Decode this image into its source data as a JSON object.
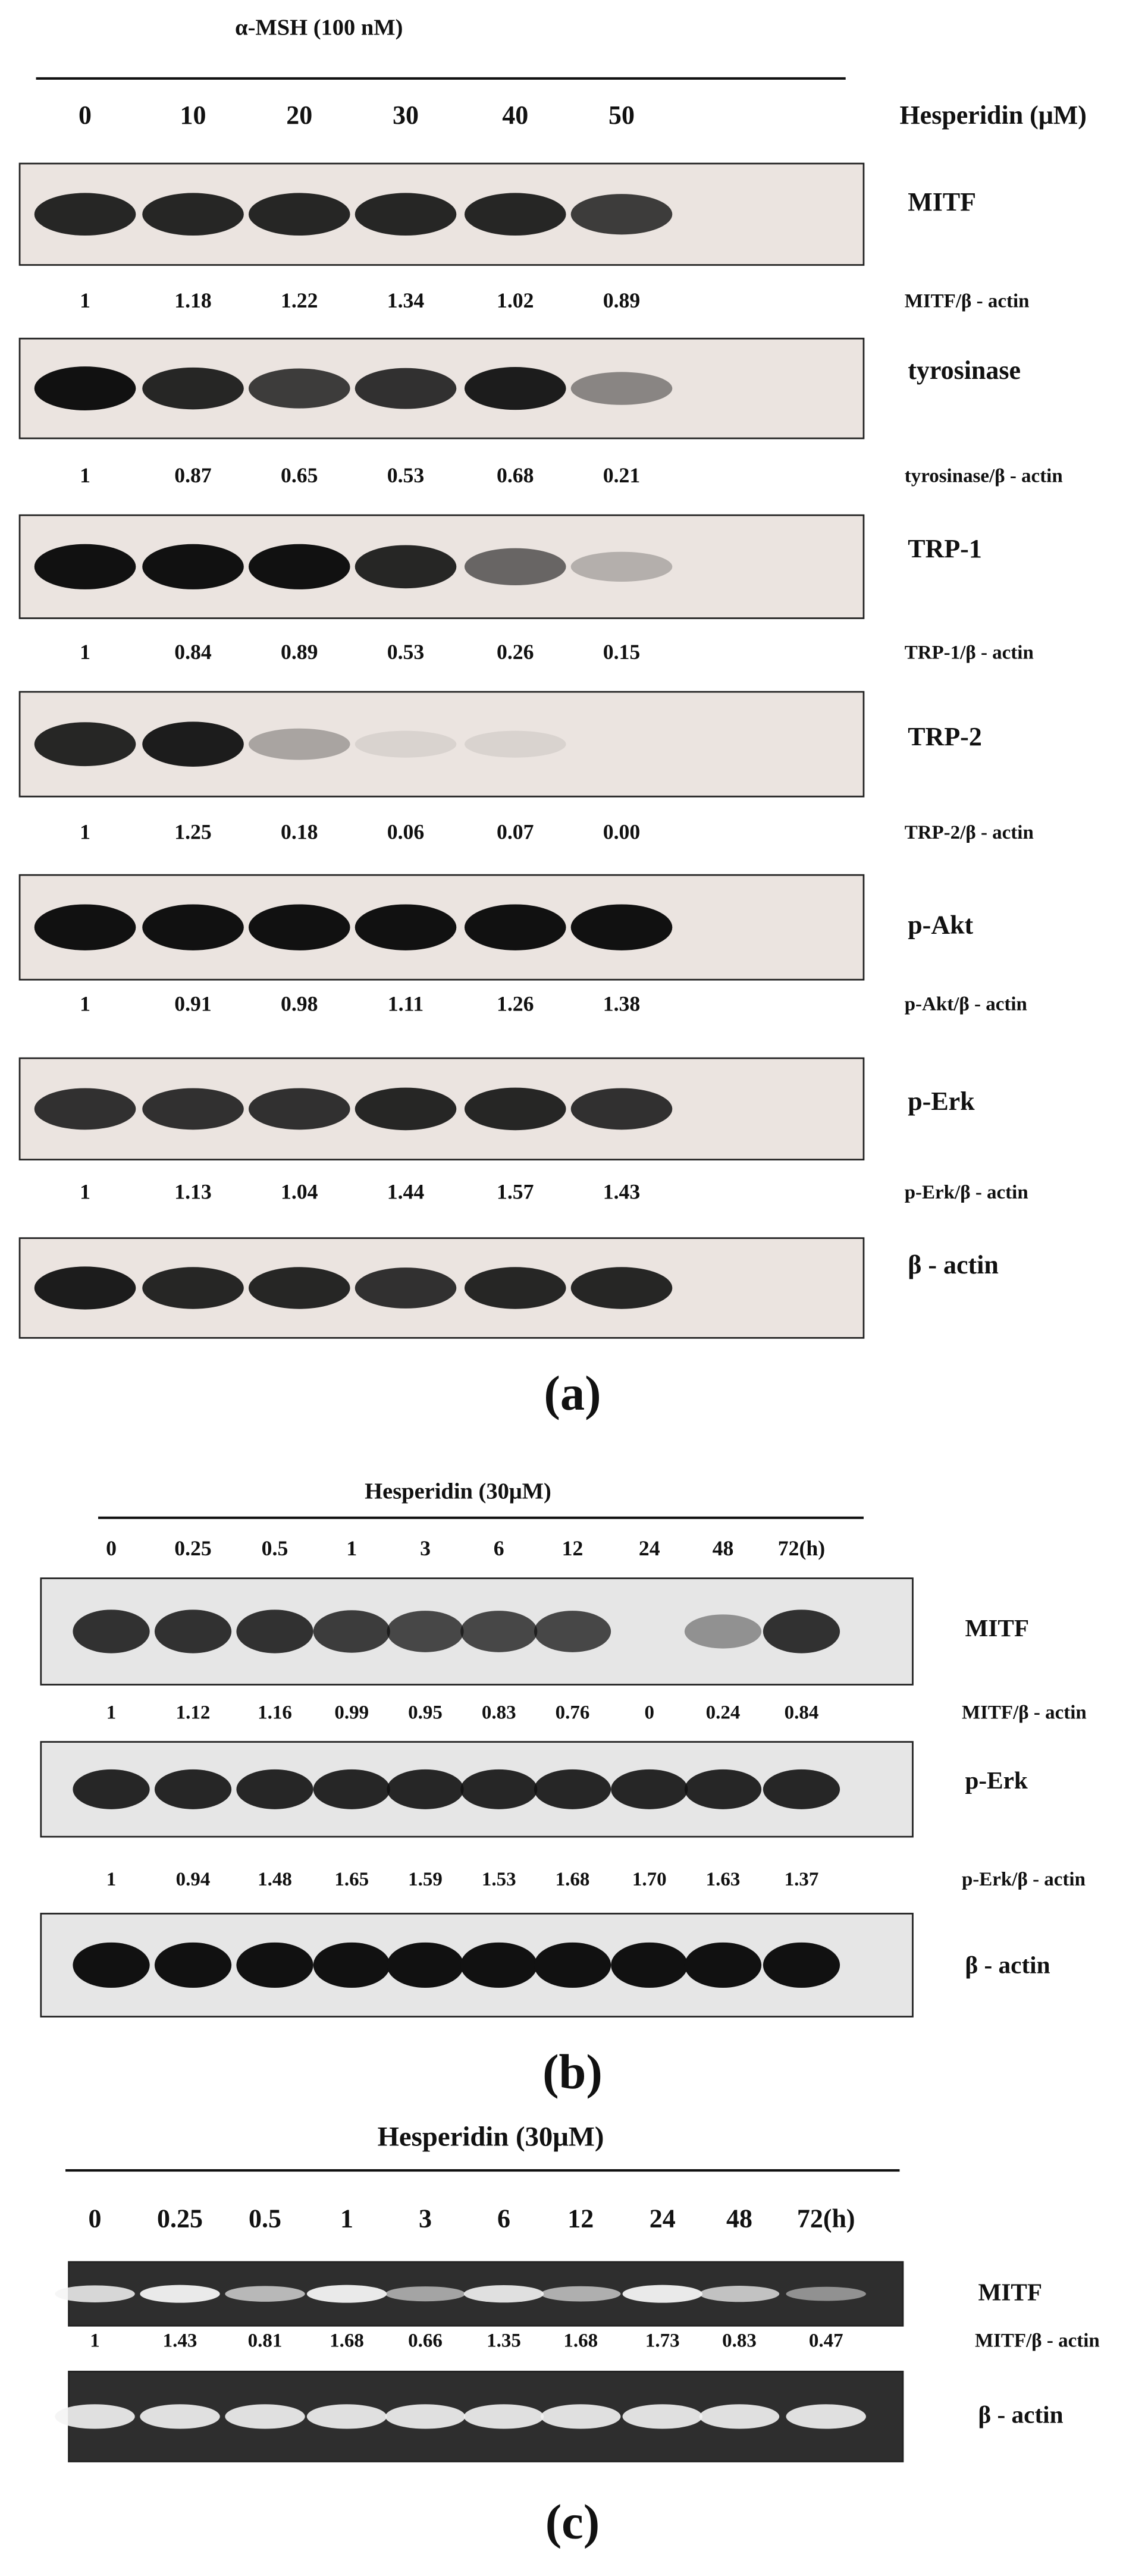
{
  "panels": [
    {
      "caption": "(a)",
      "header": "α-MSH (100 nM)",
      "lanes_title": "Hesperidin (μM)",
      "lanes": [
        "0",
        "10",
        "20",
        "30",
        "40",
        "50"
      ],
      "blots": [
        {
          "label": "MITF",
          "ratio_label": "MITF/β - actin",
          "ratios": [
            "1",
            "1.18",
            "1.22",
            "1.34",
            "1.02",
            "0.89"
          ]
        },
        {
          "label": "tyrosinase",
          "ratio_label": "tyrosinase/β - actin",
          "ratios": [
            "1",
            "0.87",
            "0.65",
            "0.53",
            "0.68",
            "0.21"
          ]
        },
        {
          "label": "TRP-1",
          "ratio_label": "TRP-1/β - actin",
          "ratios": [
            "1",
            "0.84",
            "0.89",
            "0.53",
            "0.26",
            "0.15"
          ]
        },
        {
          "label": "TRP-2",
          "ratio_label": "TRP-2/β - actin",
          "ratios": [
            "1",
            "1.25",
            "0.18",
            "0.06",
            "0.07",
            "0.00"
          ]
        },
        {
          "label": "p-Akt",
          "ratio_label": "p-Akt/β - actin",
          "ratios": [
            "1",
            "0.91",
            "0.98",
            "1.11",
            "1.26",
            "1.38"
          ]
        },
        {
          "label": "p-Erk",
          "ratio_label": "p-Erk/β - actin",
          "ratios": [
            "1",
            "1.13",
            "1.04",
            "1.44",
            "1.57",
            "1.43"
          ]
        },
        {
          "label": "β - actin"
        }
      ]
    },
    {
      "caption": "(b)",
      "header": "Hesperidin (30μM)",
      "lanes": [
        "0",
        "0.25",
        "0.5",
        "1",
        "3",
        "6",
        "12",
        "24",
        "48",
        "72(h)"
      ],
      "blots": [
        {
          "label": "MITF",
          "ratio_label": "MITF/β - actin",
          "ratios": [
            "1",
            "1.12",
            "1.16",
            "0.99",
            "0.95",
            "0.83",
            "0.76",
            "0",
            "0.24",
            "0.84"
          ]
        },
        {
          "label": "p-Erk",
          "ratio_label": "p-Erk/β - actin",
          "ratios": [
            "1",
            "0.94",
            "1.48",
            "1.65",
            "1.59",
            "1.53",
            "1.68",
            "1.70",
            "1.63",
            "1.37"
          ]
        },
        {
          "label": "β - actin"
        }
      ]
    },
    {
      "caption": "(c)",
      "header": "Hesperidin (30μM)",
      "lanes": [
        "0",
        "0.25",
        "0.5",
        "1",
        "3",
        "6",
        "12",
        "24",
        "48",
        "72(h)"
      ],
      "blots": [
        {
          "label": "MITF",
          "ratio_label": "MITF/β - actin",
          "ratios": [
            "1",
            "1.43",
            "0.81",
            "1.68",
            "0.66",
            "1.35",
            "1.68",
            "1.73",
            "0.83",
            "0.47"
          ]
        },
        {
          "label": "β - actin"
        }
      ]
    }
  ]
}
